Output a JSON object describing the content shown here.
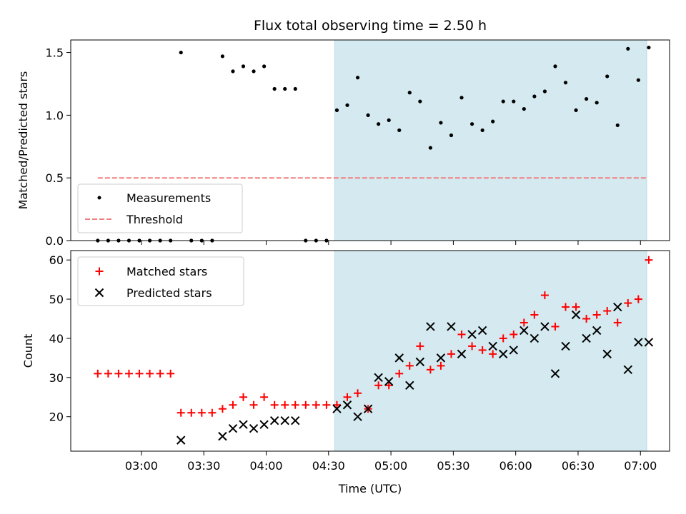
{
  "chart_data": [
    {
      "type": "scatter",
      "title": "Flux total observing time = 2.50 h",
      "xlabel": "",
      "ylabel": "Matched/Predicted stars",
      "ylim": [
        0,
        1.6
      ],
      "xlim": [
        "02:26",
        "07:14"
      ],
      "yticks": [
        "0.0",
        "0.5",
        "1.0",
        "1.5"
      ],
      "shaded_interval": [
        "04:33",
        "07:03"
      ],
      "shade_color": "#d4eaf0",
      "legend_position": "bottom-left",
      "series": [
        {
          "name": "Measurements",
          "marker": "dot",
          "color": "#000000",
          "points": [
            [
              "02:39",
              0
            ],
            [
              "02:44",
              0
            ],
            [
              "02:49",
              0
            ],
            [
              "02:54",
              0
            ],
            [
              "02:59",
              0
            ],
            [
              "03:04",
              0
            ],
            [
              "03:09",
              0
            ],
            [
              "03:14",
              0
            ],
            [
              "03:19",
              1.5
            ],
            [
              "03:24",
              0
            ],
            [
              "03:29",
              0
            ],
            [
              "03:34",
              0
            ],
            [
              "03:39",
              1.47
            ],
            [
              "03:44",
              1.35
            ],
            [
              "03:49",
              1.39
            ],
            [
              "03:54",
              1.35
            ],
            [
              "03:59",
              1.39
            ],
            [
              "04:04",
              1.21
            ],
            [
              "04:09",
              1.21
            ],
            [
              "04:14",
              1.21
            ],
            [
              "04:19",
              0
            ],
            [
              "04:24",
              0
            ],
            [
              "04:29",
              0
            ],
            [
              "04:34",
              1.04
            ],
            [
              "04:39",
              1.08
            ],
            [
              "04:44",
              1.3
            ],
            [
              "04:49",
              1.0
            ],
            [
              "04:54",
              0.93
            ],
            [
              "04:59",
              0.96
            ],
            [
              "05:04",
              0.88
            ],
            [
              "05:09",
              1.18
            ],
            [
              "05:14",
              1.11
            ],
            [
              "05:19",
              0.74
            ],
            [
              "05:24",
              0.94
            ],
            [
              "05:29",
              0.84
            ],
            [
              "05:34",
              1.14
            ],
            [
              "05:39",
              0.93
            ],
            [
              "05:44",
              0.88
            ],
            [
              "05:49",
              0.95
            ],
            [
              "05:54",
              1.11
            ],
            [
              "05:59",
              1.11
            ],
            [
              "06:04",
              1.05
            ],
            [
              "06:09",
              1.15
            ],
            [
              "06:14",
              1.19
            ],
            [
              "06:19",
              1.39
            ],
            [
              "06:24",
              1.26
            ],
            [
              "06:29",
              1.04
            ],
            [
              "06:34",
              1.13
            ],
            [
              "06:39",
              1.1
            ],
            [
              "06:44",
              1.31
            ],
            [
              "06:49",
              0.92
            ],
            [
              "06:54",
              1.53
            ],
            [
              "06:59",
              1.28
            ],
            [
              "07:04",
              1.54
            ]
          ]
        },
        {
          "name": "Threshold",
          "marker": "dashed-line",
          "color": "#f08080",
          "points": [
            [
              "02:39",
              0.5
            ],
            [
              "07:03",
              0.5
            ]
          ]
        }
      ]
    },
    {
      "type": "scatter",
      "title": "",
      "xlabel": "Time (UTC)",
      "ylabel": "Count",
      "ylim": [
        11.2,
        62.4
      ],
      "xlim": [
        "02:26",
        "07:14"
      ],
      "xticks": [
        "03:00",
        "03:30",
        "04:00",
        "04:30",
        "05:00",
        "05:30",
        "06:00",
        "06:30",
        "07:00"
      ],
      "yticks": [
        "20",
        "30",
        "40",
        "50",
        "60"
      ],
      "shaded_interval": [
        "04:33",
        "07:03"
      ],
      "shade_color": "#d4eaf0",
      "legend_position": "top-left",
      "series": [
        {
          "name": "Matched stars",
          "marker": "plus",
          "color": "#ff0000",
          "points": [
            [
              "02:39",
              31
            ],
            [
              "02:44",
              31
            ],
            [
              "02:49",
              31
            ],
            [
              "02:54",
              31
            ],
            [
              "02:59",
              31
            ],
            [
              "03:04",
              31
            ],
            [
              "03:09",
              31
            ],
            [
              "03:14",
              31
            ],
            [
              "03:19",
              21
            ],
            [
              "03:24",
              21
            ],
            [
              "03:29",
              21
            ],
            [
              "03:34",
              21
            ],
            [
              "03:39",
              22
            ],
            [
              "03:44",
              23
            ],
            [
              "03:49",
              25
            ],
            [
              "03:54",
              23
            ],
            [
              "03:59",
              25
            ],
            [
              "04:04",
              23
            ],
            [
              "04:09",
              23
            ],
            [
              "04:14",
              23
            ],
            [
              "04:19",
              23
            ],
            [
              "04:24",
              23
            ],
            [
              "04:29",
              23
            ],
            [
              "04:34",
              23
            ],
            [
              "04:39",
              25
            ],
            [
              "04:44",
              26
            ],
            [
              "04:49",
              22
            ],
            [
              "04:54",
              28
            ],
            [
              "04:59",
              28
            ],
            [
              "05:04",
              31
            ],
            [
              "05:09",
              33
            ],
            [
              "05:14",
              38
            ],
            [
              "05:19",
              32
            ],
            [
              "05:24",
              33
            ],
            [
              "05:29",
              36
            ],
            [
              "05:34",
              41
            ],
            [
              "05:39",
              38
            ],
            [
              "05:44",
              37
            ],
            [
              "05:49",
              36
            ],
            [
              "05:54",
              40
            ],
            [
              "05:59",
              41
            ],
            [
              "06:04",
              44
            ],
            [
              "06:09",
              46
            ],
            [
              "06:14",
              51
            ],
            [
              "06:19",
              43
            ],
            [
              "06:24",
              48
            ],
            [
              "06:29",
              48
            ],
            [
              "06:34",
              45
            ],
            [
              "06:39",
              46
            ],
            [
              "06:44",
              47
            ],
            [
              "06:49",
              44
            ],
            [
              "06:54",
              49
            ],
            [
              "06:59",
              50
            ],
            [
              "07:04",
              60
            ]
          ]
        },
        {
          "name": "Predicted stars",
          "marker": "x",
          "color": "#000000",
          "points": [
            [
              "03:19",
              14
            ],
            [
              "03:39",
              15
            ],
            [
              "03:44",
              17
            ],
            [
              "03:49",
              18
            ],
            [
              "03:54",
              17
            ],
            [
              "03:59",
              18
            ],
            [
              "04:04",
              19
            ],
            [
              "04:09",
              19
            ],
            [
              "04:14",
              19
            ],
            [
              "04:34",
              22
            ],
            [
              "04:39",
              23
            ],
            [
              "04:44",
              20
            ],
            [
              "04:49",
              22
            ],
            [
              "04:54",
              30
            ],
            [
              "04:59",
              29
            ],
            [
              "05:04",
              35
            ],
            [
              "05:09",
              28
            ],
            [
              "05:14",
              34
            ],
            [
              "05:19",
              43
            ],
            [
              "05:24",
              35
            ],
            [
              "05:29",
              43
            ],
            [
              "05:34",
              36
            ],
            [
              "05:39",
              41
            ],
            [
              "05:44",
              42
            ],
            [
              "05:49",
              38
            ],
            [
              "05:54",
              36
            ],
            [
              "05:59",
              37
            ],
            [
              "06:04",
              42
            ],
            [
              "06:09",
              40
            ],
            [
              "06:14",
              43
            ],
            [
              "06:19",
              31
            ],
            [
              "06:24",
              38
            ],
            [
              "06:29",
              46
            ],
            [
              "06:34",
              40
            ],
            [
              "06:39",
              42
            ],
            [
              "06:44",
              36
            ],
            [
              "06:49",
              48
            ],
            [
              "06:54",
              32
            ],
            [
              "06:59",
              39
            ],
            [
              "07:04",
              39
            ]
          ]
        }
      ]
    }
  ]
}
